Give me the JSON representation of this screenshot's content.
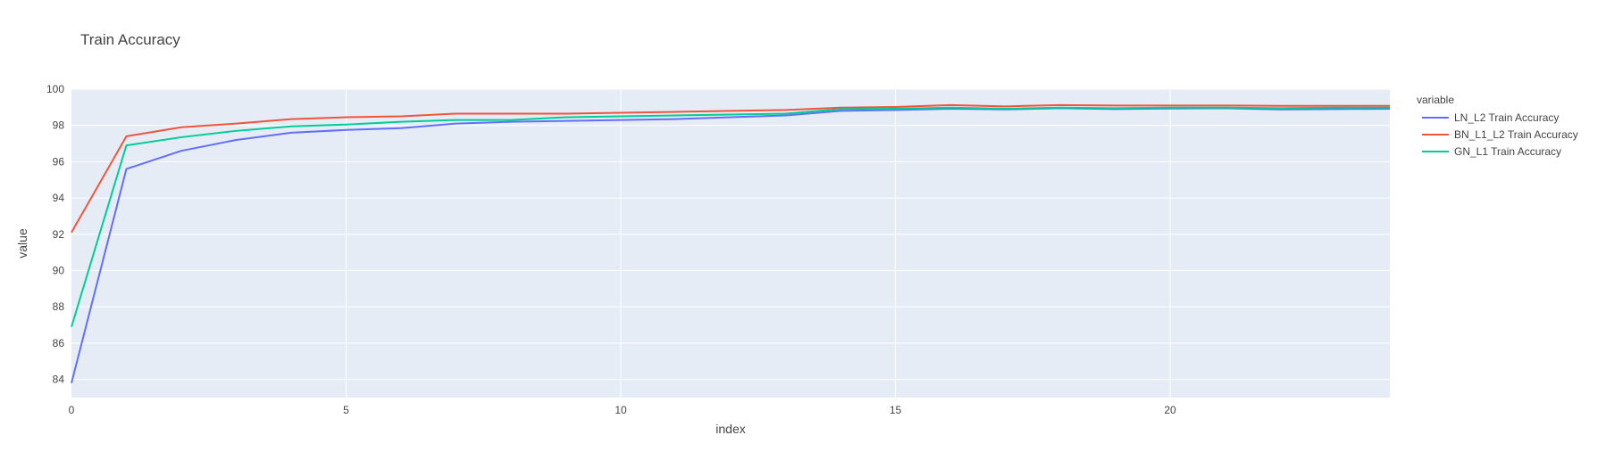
{
  "chart_data": {
    "type": "line",
    "title": "Train Accuracy",
    "xlabel": "index",
    "ylabel": "value",
    "xlim": [
      0,
      24
    ],
    "ylim": [
      83,
      100
    ],
    "x_ticks": [
      0,
      5,
      10,
      15,
      20
    ],
    "y_ticks": [
      84,
      86,
      88,
      90,
      92,
      94,
      96,
      98,
      100
    ],
    "grid": true,
    "legend_title": "variable",
    "legend_position": "right",
    "x": [
      0,
      1,
      2,
      3,
      4,
      5,
      6,
      7,
      8,
      9,
      10,
      11,
      12,
      13,
      14,
      15,
      16,
      17,
      18,
      19,
      20,
      21,
      22,
      23,
      24
    ],
    "series": [
      {
        "name": "LN_L2 Train Accuracy",
        "color": "#636efa",
        "values": [
          83.8,
          95.6,
          96.6,
          97.2,
          97.6,
          97.75,
          97.85,
          98.1,
          98.2,
          98.25,
          98.3,
          98.35,
          98.45,
          98.55,
          98.8,
          98.85,
          98.92,
          98.88,
          98.95,
          98.9,
          98.93,
          98.95,
          98.88,
          98.9,
          98.92
        ]
      },
      {
        "name": "BN_L1_L2 Train Accuracy",
        "color": "#ef553b",
        "values": [
          92.1,
          97.4,
          97.9,
          98.1,
          98.35,
          98.45,
          98.5,
          98.65,
          98.65,
          98.65,
          98.7,
          98.75,
          98.8,
          98.85,
          98.98,
          99.02,
          99.12,
          99.05,
          99.12,
          99.1,
          99.1,
          99.1,
          99.08,
          99.08,
          99.08
        ]
      },
      {
        "name": "GN_L1 Train Accuracy",
        "color": "#00cc96",
        "values": [
          86.9,
          96.9,
          97.35,
          97.7,
          97.95,
          98.05,
          98.2,
          98.3,
          98.3,
          98.45,
          98.5,
          98.55,
          98.6,
          98.65,
          98.9,
          98.92,
          98.98,
          98.92,
          98.98,
          98.95,
          98.98,
          98.98,
          98.95,
          98.98,
          98.98
        ]
      }
    ]
  }
}
